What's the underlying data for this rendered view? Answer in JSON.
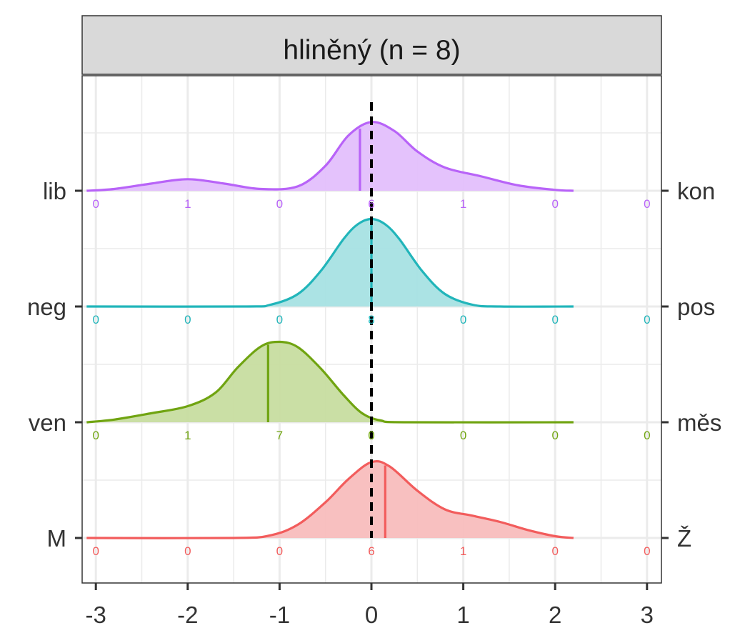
{
  "chart_data": {
    "type": "ridgeline-density",
    "title": "hliněný (n = 8)",
    "xlim": [
      -3,
      3
    ],
    "x_ticks": [
      "-3",
      "-2",
      "-1",
      "0",
      "1",
      "2",
      "3"
    ],
    "x_tick_values": [
      -3,
      -2,
      -1,
      0,
      1,
      2,
      3
    ],
    "reference_line_x": 0,
    "grid": true,
    "count_positions": [
      -3,
      -2,
      -1,
      0,
      1,
      2,
      3
    ],
    "series": [
      {
        "left_label": "lib",
        "right_label": "kon",
        "color": "#B863F8",
        "fill": "#E3BFFC",
        "mean": -0.125,
        "counts": [
          "0",
          "1",
          "0",
          "6",
          "1",
          "0",
          "0"
        ],
        "density": [
          [
            -3.1,
            0.0
          ],
          [
            -2.8,
            0.02
          ],
          [
            -2.4,
            0.08
          ],
          [
            -2.0,
            0.13
          ],
          [
            -1.6,
            0.08
          ],
          [
            -1.2,
            0.02
          ],
          [
            -0.8,
            0.05
          ],
          [
            -0.5,
            0.28
          ],
          [
            -0.25,
            0.62
          ],
          [
            0.0,
            0.77
          ],
          [
            0.25,
            0.67
          ],
          [
            0.5,
            0.44
          ],
          [
            0.8,
            0.26
          ],
          [
            1.2,
            0.16
          ],
          [
            1.6,
            0.06
          ],
          [
            2.0,
            0.01
          ],
          [
            2.2,
            0.0
          ]
        ]
      },
      {
        "left_label": "neg",
        "right_label": "pos",
        "color": "#21B5BA",
        "fill": "#A6E2E3",
        "mean": 0.0,
        "counts": [
          "0",
          "0",
          "0",
          "8",
          "0",
          "0",
          "0"
        ],
        "density": [
          [
            -3.1,
            0.0
          ],
          [
            -1.4,
            0.0
          ],
          [
            -1.1,
            0.02
          ],
          [
            -0.8,
            0.14
          ],
          [
            -0.55,
            0.4
          ],
          [
            -0.3,
            0.76
          ],
          [
            -0.15,
            0.92
          ],
          [
            0.0,
            0.98
          ],
          [
            0.15,
            0.92
          ],
          [
            0.3,
            0.76
          ],
          [
            0.55,
            0.4
          ],
          [
            0.8,
            0.14
          ],
          [
            1.1,
            0.02
          ],
          [
            1.4,
            0.0
          ],
          [
            2.2,
            0.0
          ]
        ]
      },
      {
        "left_label": "ven",
        "right_label": "měs",
        "color": "#70A411",
        "fill": "#C7DDA0",
        "mean": -1.125,
        "counts": [
          "0",
          "1",
          "7",
          "0",
          "0",
          "0",
          "0"
        ],
        "density": [
          [
            -3.1,
            0.0
          ],
          [
            -2.8,
            0.03
          ],
          [
            -2.4,
            0.1
          ],
          [
            -2.0,
            0.18
          ],
          [
            -1.7,
            0.33
          ],
          [
            -1.45,
            0.62
          ],
          [
            -1.2,
            0.85
          ],
          [
            -1.0,
            0.9
          ],
          [
            -0.8,
            0.84
          ],
          [
            -0.55,
            0.6
          ],
          [
            -0.3,
            0.3
          ],
          [
            -0.1,
            0.1
          ],
          [
            0.1,
            0.02
          ],
          [
            0.4,
            0.0
          ],
          [
            2.2,
            0.0
          ]
        ]
      },
      {
        "left_label": "M",
        "right_label": "Ž",
        "color": "#F25C5C",
        "fill": "#F8BDBD",
        "mean": 0.15,
        "counts": [
          "0",
          "0",
          "0",
          "6",
          "1",
          "0",
          "0"
        ],
        "density": [
          [
            -3.1,
            0.0
          ],
          [
            -1.5,
            0.0
          ],
          [
            -1.1,
            0.03
          ],
          [
            -0.8,
            0.15
          ],
          [
            -0.5,
            0.4
          ],
          [
            -0.25,
            0.66
          ],
          [
            0.0,
            0.85
          ],
          [
            0.2,
            0.8
          ],
          [
            0.5,
            0.53
          ],
          [
            0.8,
            0.32
          ],
          [
            1.1,
            0.25
          ],
          [
            1.4,
            0.18
          ],
          [
            1.7,
            0.09
          ],
          [
            2.0,
            0.02
          ],
          [
            2.2,
            0.0
          ]
        ]
      }
    ]
  }
}
